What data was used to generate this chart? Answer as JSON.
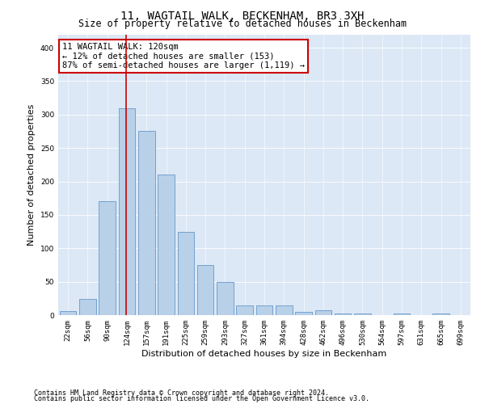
{
  "title": "11, WAGTAIL WALK, BECKENHAM, BR3 3XH",
  "subtitle": "Size of property relative to detached houses in Beckenham",
  "xlabel": "Distribution of detached houses by size in Beckenham",
  "ylabel": "Number of detached properties",
  "bar_labels": [
    "22sqm",
    "56sqm",
    "90sqm",
    "124sqm",
    "157sqm",
    "191sqm",
    "225sqm",
    "259sqm",
    "293sqm",
    "327sqm",
    "361sqm",
    "394sqm",
    "428sqm",
    "462sqm",
    "496sqm",
    "530sqm",
    "564sqm",
    "597sqm",
    "631sqm",
    "665sqm",
    "699sqm"
  ],
  "bar_values": [
    6,
    24,
    170,
    310,
    275,
    210,
    125,
    75,
    50,
    15,
    14,
    14,
    5,
    7,
    3,
    2,
    0,
    3,
    0,
    3,
    0
  ],
  "bar_color": "#b8d0e8",
  "bar_edge_color": "#6699cc",
  "vline_x": 2.97,
  "vline_color": "#cc0000",
  "annotation_text": "11 WAGTAIL WALK: 120sqm\n← 12% of detached houses are smaller (153)\n87% of semi-detached houses are larger (1,119) →",
  "annotation_box_color": "#ffffff",
  "annotation_box_edge": "#cc0000",
  "ylim": [
    0,
    420
  ],
  "yticks": [
    0,
    50,
    100,
    150,
    200,
    250,
    300,
    350,
    400
  ],
  "background_color": "#dce8f5",
  "footer_line1": "Contains HM Land Registry data © Crown copyright and database right 2024.",
  "footer_line2": "Contains public sector information licensed under the Open Government Licence v3.0.",
  "title_fontsize": 10,
  "subtitle_fontsize": 8.5,
  "xlabel_fontsize": 8,
  "ylabel_fontsize": 8,
  "tick_fontsize": 6.5,
  "annotation_fontsize": 7.5,
  "footer_fontsize": 6
}
